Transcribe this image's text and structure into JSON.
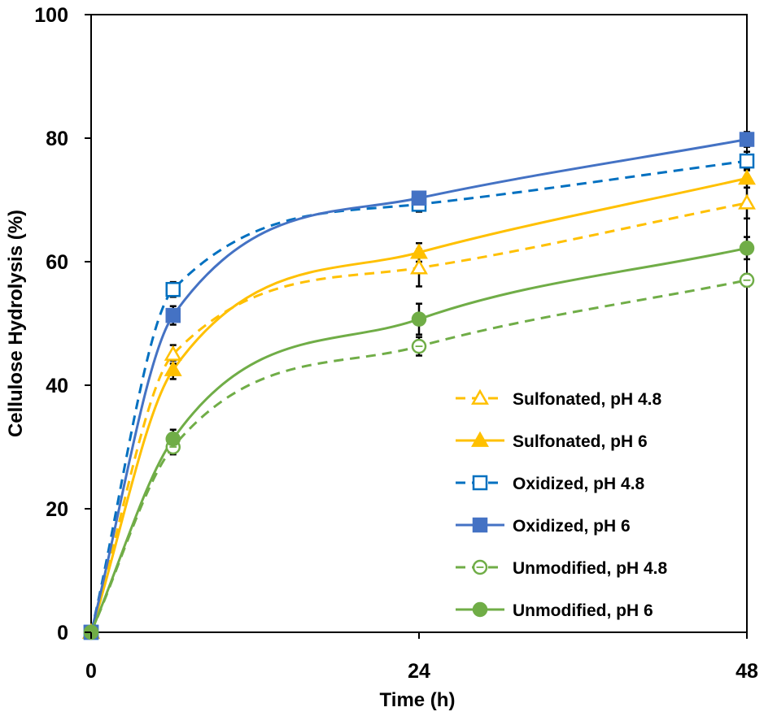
{
  "chart_data": {
    "type": "line",
    "title": "",
    "xlabel": "Time (h)",
    "ylabel": "Cellulose Hydrolysis (%)",
    "xlim": [
      0,
      48
    ],
    "ylim": [
      0,
      100
    ],
    "x_ticks": [
      0,
      24,
      48
    ],
    "y_ticks": [
      0,
      20,
      40,
      60,
      80,
      100
    ],
    "x_tick_labels": [
      "0",
      "24",
      "48"
    ],
    "y_tick_labels": [
      "0",
      "20",
      "40",
      "60",
      "80",
      "100"
    ],
    "grid": false,
    "legend_position": "bottom-right",
    "x": [
      0,
      6,
      24,
      48
    ],
    "series": [
      {
        "name": "Sulfonated, pH 4.8",
        "values": [
          0,
          45,
          59,
          69.5
        ],
        "errors": [
          0,
          1.5,
          3,
          2.5
        ],
        "color": "#FFC000",
        "dash": true,
        "marker": "triangle",
        "filled": false
      },
      {
        "name": "Sulfonated, pH 6",
        "values": [
          0,
          42.5,
          61.5,
          73.5
        ],
        "errors": [
          0,
          1.5,
          1.5,
          1.5
        ],
        "color": "#FFC000",
        "dash": false,
        "marker": "triangle",
        "filled": true
      },
      {
        "name": "Oxidized, pH 4.8",
        "values": [
          0,
          55.5,
          69.3,
          76.3
        ],
        "errors": [
          0,
          1.2,
          1.2,
          1.5
        ],
        "color": "#0070C0",
        "dash": true,
        "marker": "square",
        "filled": false
      },
      {
        "name": "Oxidized, pH 6",
        "values": [
          0,
          51.3,
          70.3,
          79.8
        ],
        "errors": [
          0,
          1.5,
          0.8,
          1.2
        ],
        "color": "#4472C4",
        "dash": false,
        "marker": "square",
        "filled": true
      },
      {
        "name": "Unmodified, pH 4.8",
        "values": [
          0,
          30,
          46.3,
          57
        ],
        "errors": [
          0,
          1.2,
          1.5,
          1
        ],
        "color": "#70AD47",
        "dash": true,
        "marker": "circle",
        "filled": false
      },
      {
        "name": "Unmodified, pH 6",
        "values": [
          0,
          31.3,
          50.7,
          62.2
        ],
        "errors": [
          0,
          1.5,
          2.5,
          1.8
        ],
        "color": "#70AD47",
        "dash": false,
        "marker": "circle",
        "filled": true
      }
    ]
  }
}
